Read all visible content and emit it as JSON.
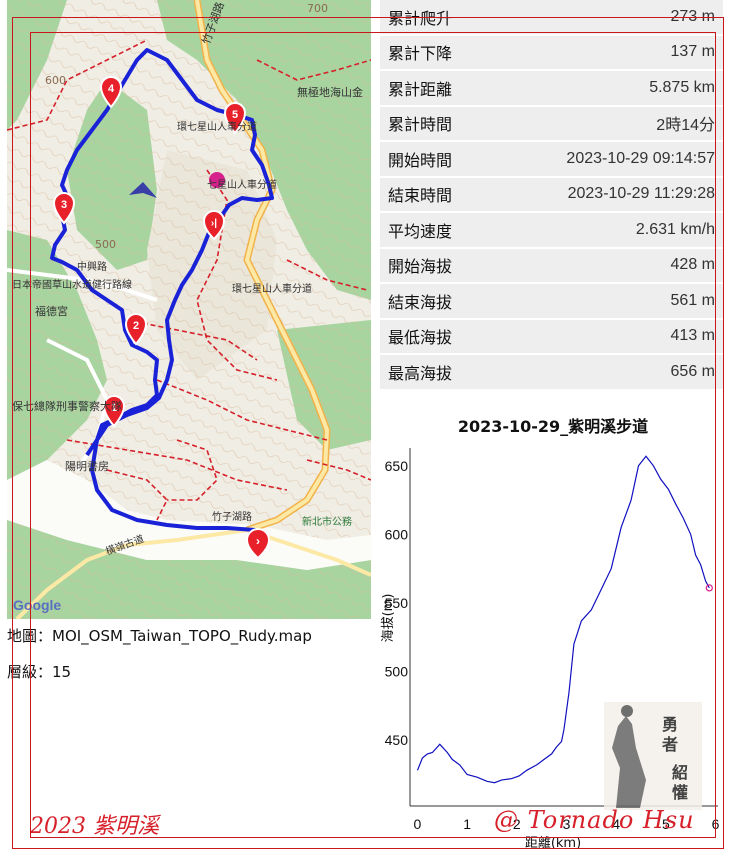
{
  "map": {
    "labels": {
      "road1": "竹子湖路",
      "temple": "無極地海山金",
      "trail1": "環七星山人車分道",
      "trail2": "七星山人車分道",
      "trail3": "環七星山人車分道",
      "park": "日本帝國草山水道健行路線",
      "fude": "福德宮",
      "police": "保七總隊刑事警察大隊",
      "yangming": "陽明書房",
      "hengjia": "橫嶺古道",
      "road2": "竹子湖路",
      "road3": "中興路",
      "village": "新北市公務",
      "e500": "500",
      "e600": "600",
      "e700": "700",
      "google": "Google"
    },
    "waypoints": [
      "1",
      "2",
      "3",
      "4",
      "5"
    ]
  },
  "map_meta": {
    "map_file": "地圖：MOI_OSM_Taiwan_TOPO_Rudy.map",
    "zoom": "層級：15"
  },
  "stats": [
    {
      "label": "累計爬升",
      "value": "273 m"
    },
    {
      "label": "累計下降",
      "value": "137 m"
    },
    {
      "label": "累計距離",
      "value": "5.875 km"
    },
    {
      "label": "累計時間",
      "value": "2時14分"
    },
    {
      "label": "開始時間",
      "value": "2023-10-29 09:14:57"
    },
    {
      "label": "結束時間",
      "value": "2023-10-29 11:29:28"
    },
    {
      "label": "平均速度",
      "value": "2.631 km/h"
    },
    {
      "label": "開始海拔",
      "value": "428 m"
    },
    {
      "label": "結束海拔",
      "value": "561 m"
    },
    {
      "label": "最低海拔",
      "value": "413 m"
    },
    {
      "label": "最高海拔",
      "value": "656 m"
    }
  ],
  "chart_data": {
    "type": "line",
    "title": "2023-10-29_紫明溪步道",
    "xlabel": "距離(km)",
    "ylabel": "海拔(m)",
    "xlim": [
      -0.15,
      6.05
    ],
    "ylim": [
      402,
      663
    ],
    "xticks": [
      0,
      1,
      2,
      3,
      4,
      5,
      6
    ],
    "yticks": [
      450,
      500,
      550,
      600,
      650
    ],
    "series": [
      {
        "x": [
          0,
          0.1,
          0.2,
          0.3,
          0.45,
          0.6,
          0.7,
          0.85,
          1.0,
          1.2,
          1.4,
          1.55,
          1.7,
          1.9,
          2.05,
          2.2,
          2.4,
          2.55,
          2.7,
          2.8,
          2.9,
          2.95,
          3.05,
          3.15,
          3.3,
          3.5,
          3.7,
          3.9,
          4.1,
          4.3,
          4.45,
          4.6,
          4.75,
          4.9,
          5.05,
          5.2,
          5.35,
          5.5,
          5.6,
          5.7,
          5.8,
          5.875
        ],
        "values": [
          428,
          437,
          440,
          441,
          447,
          441,
          436,
          432,
          425,
          423,
          420,
          419,
          421,
          422,
          424,
          428,
          432,
          436,
          440,
          445,
          449,
          458,
          485,
          520,
          537,
          545,
          560,
          575,
          605,
          625,
          650,
          657,
          650,
          640,
          633,
          622,
          612,
          600,
          585,
          578,
          566,
          561
        ]
      }
    ]
  },
  "footer": {
    "left": "2023  紫明溪",
    "right": "@ Tornado Hsu"
  },
  "colors": {
    "track": "#1a22d8",
    "pin": "#e8202a",
    "frame": "#c8181e",
    "line": "#1010c0"
  }
}
